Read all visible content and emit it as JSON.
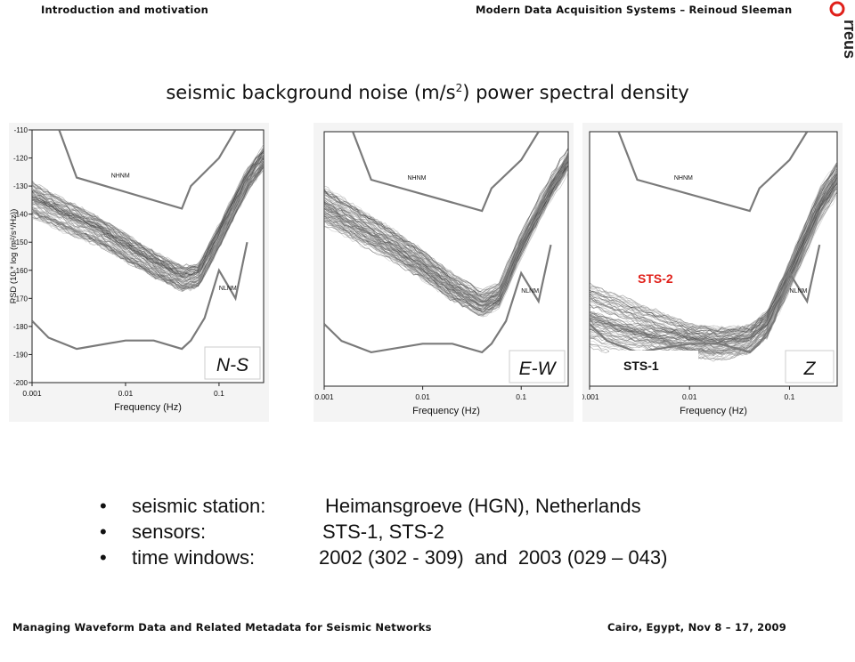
{
  "header": {
    "left": "Introduction and motivation",
    "right": "Modern Data Acquisition Systems – Reinoud Sleeman",
    "logo_text": "rfeus"
  },
  "title": {
    "text": "seismic background noise (m/s",
    "superscript": "2",
    "suffix": ") power spectral density"
  },
  "chart_data": [
    {
      "type": "line",
      "panel_label": "N-S",
      "xlabel": "Frequency (Hz)",
      "ylabel": "PSD (10 * log (m²/s⁴/Hz))",
      "xscale": "log",
      "xlim": [
        0.001,
        0.3
      ],
      "ylim": [
        -200,
        -110
      ],
      "xticks": [
        "0.001",
        "0.01",
        "0.1"
      ],
      "yticks": [
        "-110",
        "-120",
        "-130",
        "-140",
        "-150",
        "-160",
        "-170",
        "-180",
        "-190",
        "-200"
      ],
      "reference_curves": [
        {
          "name": "NHNM",
          "x": [
            0.00195,
            0.003,
            0.04,
            0.05,
            0.1,
            0.15
          ],
          "y": [
            -110,
            -127,
            -138,
            -130,
            -120,
            -110
          ]
        },
        {
          "name": "NLNM",
          "x": [
            0.001,
            0.0015,
            0.003,
            0.01,
            0.02,
            0.04,
            0.05,
            0.07,
            0.1,
            0.15,
            0.2
          ],
          "y": [
            -178,
            -184,
            -188,
            -185,
            -185,
            -188,
            -185,
            -177,
            -160,
            -170,
            -150
          ]
        }
      ],
      "series": [
        {
          "x": [
            0.001,
            0.002,
            0.005,
            0.01,
            0.02,
            0.04,
            0.06,
            0.1,
            0.2,
            0.3
          ],
          "y": [
            -135,
            -140,
            -146,
            -152,
            -158,
            -163,
            -162,
            -148,
            -128,
            -120
          ]
        }
      ]
    },
    {
      "type": "line",
      "panel_label": "E-W",
      "xlabel": "Frequency (Hz)",
      "xscale": "log",
      "xlim": [
        0.001,
        0.3
      ],
      "ylim": [
        -200,
        -110
      ],
      "xticks": [
        "0.001",
        "0.01",
        "0.1"
      ],
      "reference_curves": [
        {
          "name": "NHNM",
          "x": [
            0.00195,
            0.003,
            0.04,
            0.05,
            0.1,
            0.15
          ],
          "y": [
            -110,
            -127,
            -138,
            -130,
            -120,
            -110
          ]
        },
        {
          "name": "NLNM",
          "x": [
            0.001,
            0.0015,
            0.003,
            0.01,
            0.02,
            0.04,
            0.05,
            0.07,
            0.1,
            0.15,
            0.2
          ],
          "y": [
            -178,
            -184,
            -188,
            -185,
            -185,
            -188,
            -185,
            -177,
            -160,
            -170,
            -150
          ]
        }
      ],
      "series": [
        {
          "x": [
            0.001,
            0.002,
            0.005,
            0.01,
            0.02,
            0.04,
            0.06,
            0.1,
            0.2,
            0.3
          ],
          "y": [
            -136,
            -142,
            -150,
            -157,
            -165,
            -171,
            -168,
            -150,
            -130,
            -120
          ]
        }
      ]
    },
    {
      "type": "line",
      "panel_label": "Z",
      "xlabel": "Frequency (Hz)",
      "xscale": "log",
      "xlim": [
        0.001,
        0.3
      ],
      "ylim": [
        -200,
        -110
      ],
      "xticks": [
        "0.001",
        "0.01",
        "0.1"
      ],
      "annotations": [
        {
          "text": "STS-2",
          "color": "#e0201a"
        },
        {
          "text": "STS-1",
          "color": "#111111"
        }
      ],
      "reference_curves": [
        {
          "name": "NHNM",
          "x": [
            0.00195,
            0.003,
            0.04,
            0.05,
            0.1,
            0.15
          ],
          "y": [
            -110,
            -127,
            -138,
            -130,
            -120,
            -110
          ]
        },
        {
          "name": "NLNM",
          "x": [
            0.001,
            0.0015,
            0.003,
            0.01,
            0.02,
            0.04,
            0.05,
            0.07,
            0.1,
            0.15,
            0.2
          ],
          "y": [
            -178,
            -184,
            -188,
            -185,
            -185,
            -188,
            -185,
            -177,
            -160,
            -170,
            -150
          ]
        }
      ],
      "series": [
        {
          "name": "STS-2",
          "x": [
            0.001,
            0.002,
            0.005,
            0.01,
            0.02,
            0.04,
            0.06,
            0.1,
            0.2,
            0.3
          ],
          "y": [
            -170,
            -174,
            -179,
            -183,
            -184,
            -183,
            -178,
            -160,
            -135,
            -125
          ]
        },
        {
          "name": "STS-1",
          "x": [
            0.001,
            0.002,
            0.005,
            0.01,
            0.02,
            0.04,
            0.06,
            0.1,
            0.2,
            0.3
          ],
          "y": [
            -180,
            -183,
            -185,
            -185,
            -186,
            -184,
            -178,
            -162,
            -138,
            -128
          ]
        }
      ]
    }
  ],
  "bullets": [
    {
      "key": "seismic station:",
      "value": "Heimansgroeve (HGN), Netherlands"
    },
    {
      "key": "sensors:",
      "value": "STS-1, STS-2"
    },
    {
      "key": "time windows:",
      "value": "2002 (302 - 309)  and  2003 (029 – 043)"
    }
  ],
  "footer": {
    "left": "Managing Waveform Data and Related Metadata for Seismic Networks",
    "right": "Cairo, Egypt,  Nov 8 – 17, 2009"
  },
  "colors": {
    "reference_curve": "#7a7a7a",
    "trace": "#555555",
    "sts2_label": "#e0201a",
    "logo": "#222222"
  }
}
